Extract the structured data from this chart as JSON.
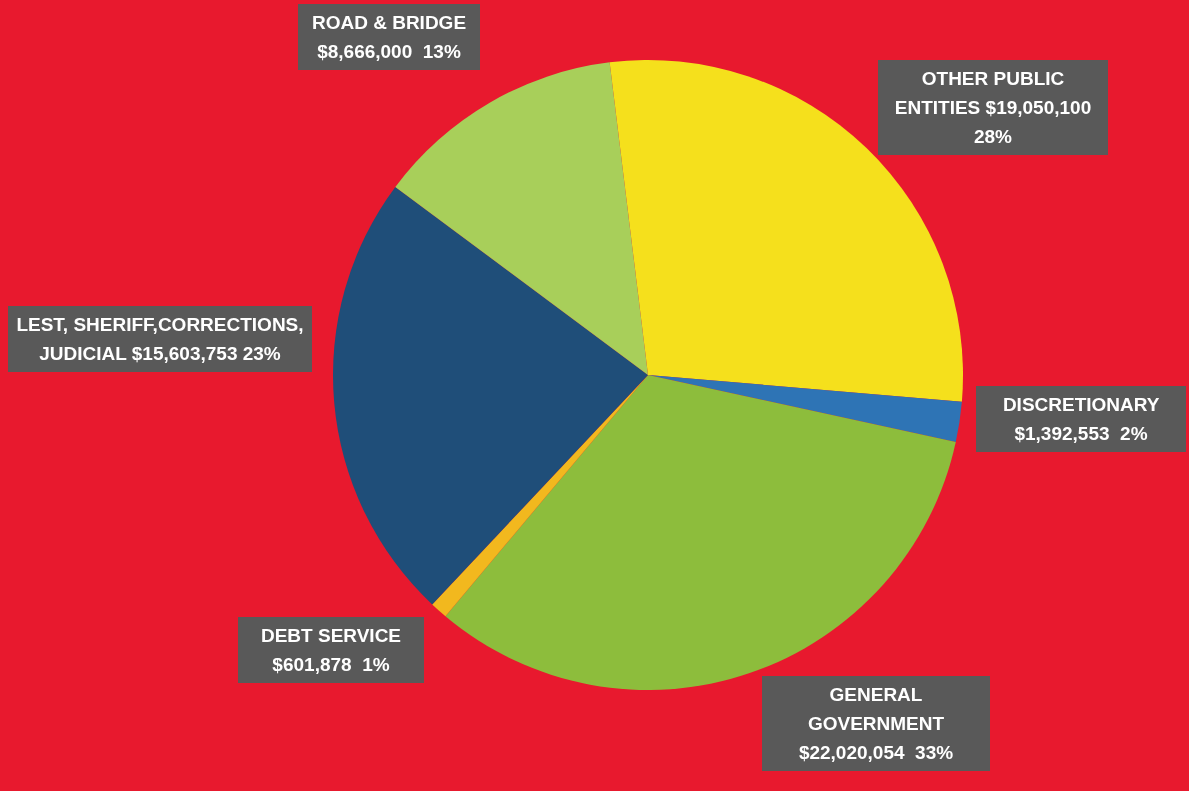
{
  "chart_data": {
    "type": "pie",
    "categories": [
      "OTHER PUBLIC ENTITIES",
      "DISCRETIONARY",
      "GENERAL GOVERNMENT",
      "DEBT SERVICE",
      "LEST, SHERIFF,CORRECTIONS, JUDICIAL",
      "ROAD & BRIDGE"
    ],
    "values": [
      19050100,
      1392553,
      22020054,
      601878,
      15603753,
      8666000
    ],
    "value_labels": [
      "$19,050,100  28%",
      "$1,392,553  2%",
      "$22,020,054  33%",
      "$601,878  1%",
      "$15,603,753 23%",
      "$8,666,000  13%"
    ],
    "colors": [
      "#f5e01c",
      "#2e74b5",
      "#8dbd3c",
      "#f2b81e",
      "#1f4e79",
      "#a8cf5a"
    ],
    "legend": false
  }
}
